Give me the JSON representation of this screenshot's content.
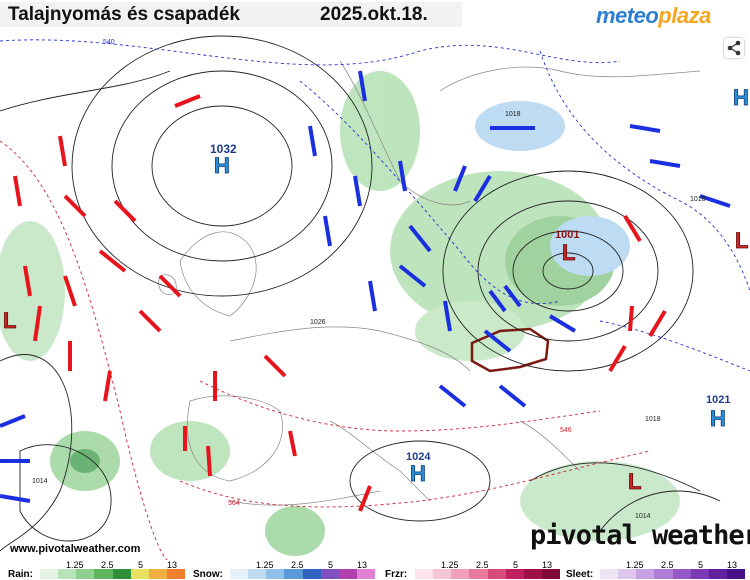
{
  "header": {
    "title": "Talajnyomás és csapadék",
    "date": "2025.okt.18.",
    "logo_part1": "meteo",
    "logo_part2": "plaza"
  },
  "colors": {
    "high_blue": "#2c8fd6",
    "low_red": "#c0282a",
    "wind_red": "#e8141c",
    "wind_blue": "#1a2fe0",
    "rain_green": "#6cc06c",
    "snow_blue": "#7bb5e0",
    "hungary_outline": "#7a1a12"
  },
  "map": {
    "pressure_centers": [
      {
        "type": "H",
        "value": "1032"
      },
      {
        "type": "L",
        "value": "1001"
      },
      {
        "type": "H",
        "value": "1024"
      },
      {
        "type": "H",
        "value": "1021"
      },
      {
        "type": "L",
        "value": ""
      },
      {
        "type": "L",
        "value": ""
      },
      {
        "type": "L",
        "value": ""
      },
      {
        "type": "H",
        "value": ""
      }
    ],
    "isobar_labels": [
      "540",
      "1018",
      "1026",
      "1018",
      "1018",
      "1014",
      "1014",
      "564",
      "546"
    ],
    "share_icon": "share-icon"
  },
  "footer": {
    "credit": "www.pivotalweather.com",
    "brand": "pivotal weather"
  },
  "legend": {
    "rain_label": "Rain:",
    "snow_label": "Snow:",
    "frzr_label": "Frzr:",
    "sleet_label": "Sleet:",
    "ticks": [
      "1.25",
      "2.5",
      "5",
      "13"
    ]
  }
}
